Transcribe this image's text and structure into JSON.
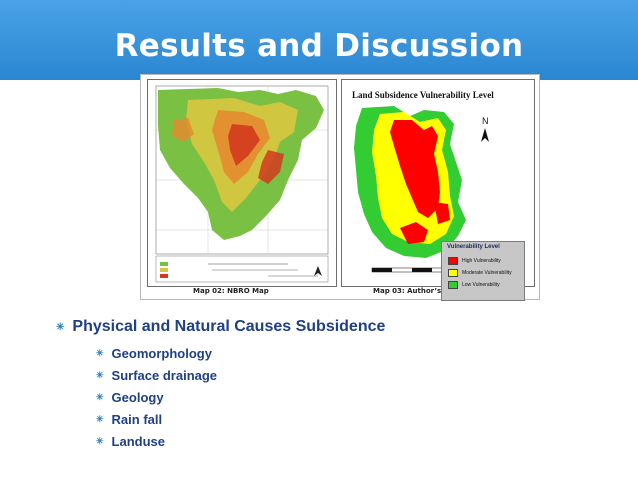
{
  "slide": {
    "title": "Results and Discussion",
    "figure": {
      "left_map_caption": "Map 02: NBRO Map",
      "right_map_caption": "Map 03: Author’s Map",
      "right_map_title": "Land Subsidence Vulnerability Level",
      "legend": {
        "title": "Vulnerability Level",
        "items": [
          {
            "label": "High Vulnerability",
            "color": "#ff0000"
          },
          {
            "label": "Moderate Vulnerability",
            "color": "#ffff00"
          },
          {
            "label": "Low Vulnerability",
            "color": "#33cc33"
          }
        ]
      },
      "north_label": "N"
    },
    "bullets": {
      "main": "Physical and Natural Causes Subsidence",
      "items": [
        "Geomorphology",
        "Surface drainage",
        "Geology",
        "Rain fall",
        "Landuse"
      ]
    }
  }
}
